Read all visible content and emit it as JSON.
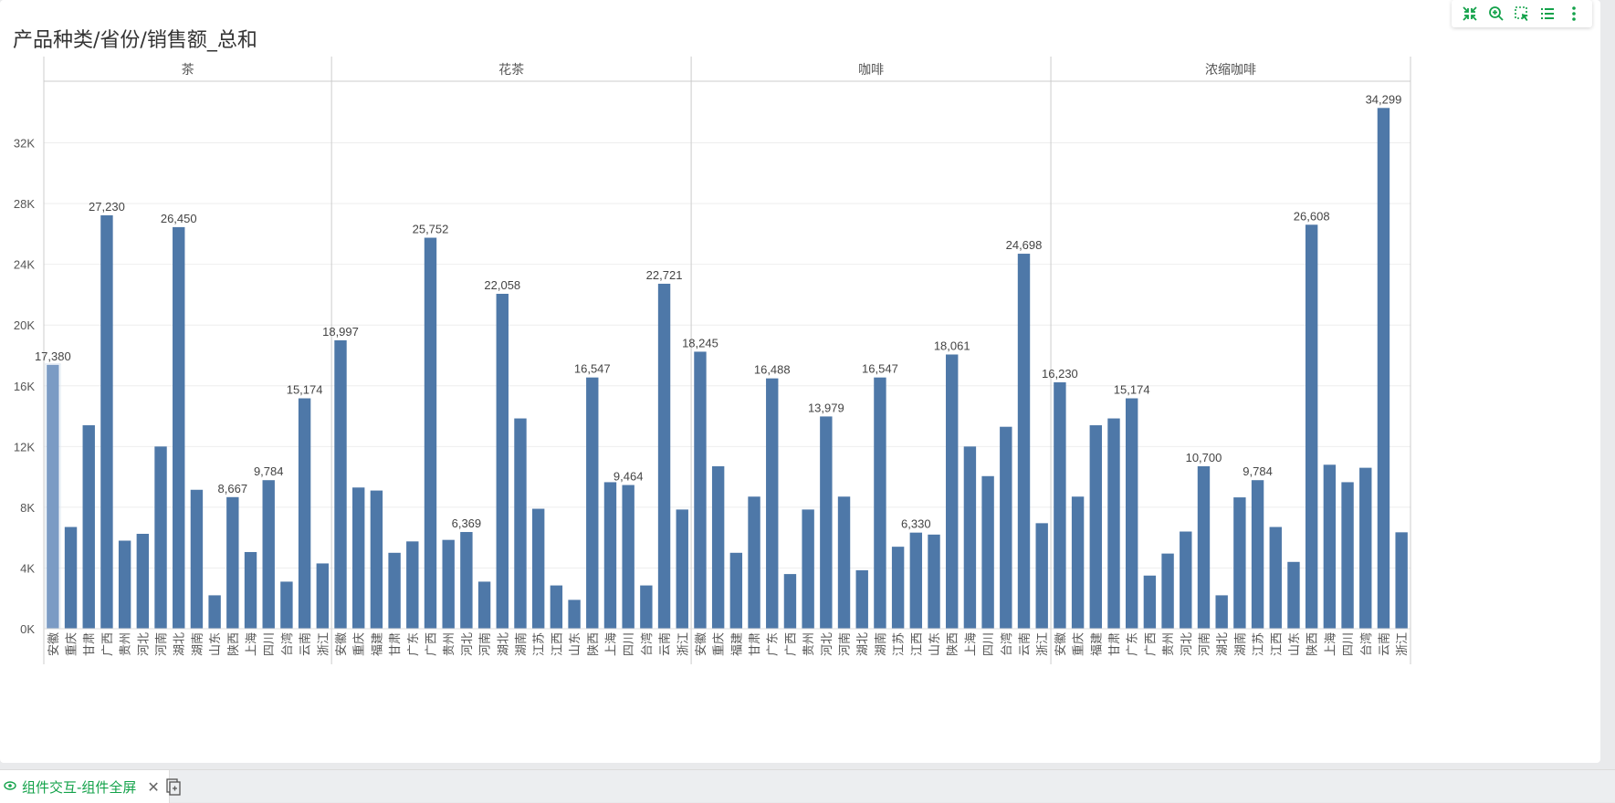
{
  "title": "产品种类/省份/销售额_总和",
  "toolbar": {
    "icons": [
      "collapse-icon",
      "zoom-in-icon",
      "select-icon",
      "list-icon",
      "more-icon"
    ]
  },
  "tab": {
    "label": "组件交互-组件全屏"
  },
  "colors": {
    "bar": "#4e78a8",
    "bar_highlight": "#7b9bc4",
    "grid": "#eeeeee",
    "text": "#555555",
    "accent": "#13a24a"
  },
  "chart_data": {
    "type": "bar",
    "ylim": [
      0,
      36000
    ],
    "yticks": [
      0,
      4000,
      8000,
      12000,
      16000,
      20000,
      24000,
      28000,
      32000
    ],
    "yticklabels": [
      "0K",
      "4K",
      "8K",
      "12K",
      "16K",
      "20K",
      "24K",
      "28K",
      "32K"
    ],
    "panels": [
      {
        "name": "茶",
        "categories": [
          "安徽",
          "重庆",
          "甘肃",
          "广西",
          "贵州",
          "河北",
          "河南",
          "湖北",
          "湖南",
          "山东",
          "陕西",
          "上海",
          "四川",
          "台湾",
          "云南",
          "浙江"
        ],
        "values": [
          17380,
          6700,
          13400,
          27230,
          5800,
          6250,
          12000,
          26450,
          9150,
          2200,
          8667,
          5050,
          9784,
          3100,
          15174,
          4300
        ],
        "labels": [
          "17,380",
          "",
          "",
          "27,230",
          "",
          "",
          "",
          "26,450",
          "",
          "",
          "8,667",
          "",
          "9,784",
          "",
          "15,174",
          ""
        ],
        "highlight_index": 0
      },
      {
        "name": "花茶",
        "categories": [
          "安徽",
          "重庆",
          "福建",
          "甘肃",
          "广东",
          "广西",
          "贵州",
          "河北",
          "河南",
          "湖北",
          "湖南",
          "江苏",
          "江西",
          "山东",
          "陕西",
          "上海",
          "四川",
          "台湾",
          "云南",
          "浙江"
        ],
        "values": [
          18997,
          9300,
          9100,
          5000,
          5750,
          25752,
          5850,
          6369,
          3100,
          22058,
          13850,
          7900,
          2850,
          1900,
          16547,
          9650,
          9464,
          2850,
          22721,
          7850
        ],
        "labels": [
          "18,997",
          "",
          "",
          "",
          "",
          "25,752",
          "",
          "6,369",
          "",
          "22,058",
          "",
          "",
          "",
          "",
          "16,547",
          "",
          "9,464",
          "",
          "22,721",
          ""
        ]
      },
      {
        "name": "咖啡",
        "categories": [
          "安徽",
          "重庆",
          "福建",
          "甘肃",
          "广东",
          "广西",
          "贵州",
          "河北",
          "河南",
          "湖北",
          "湖南",
          "江苏",
          "江西",
          "山东",
          "陕西",
          "上海",
          "四川",
          "台湾",
          "云南",
          "浙江"
        ],
        "values": [
          18245,
          10700,
          5000,
          8700,
          16488,
          3600,
          7850,
          13979,
          8700,
          3850,
          16547,
          5400,
          6330,
          6200,
          18061,
          12000,
          10050,
          13300,
          24698,
          6950
        ],
        "labels": [
          "18,245",
          "",
          "",
          "",
          "16,488",
          "",
          "",
          "13,979",
          "",
          "",
          "16,547",
          "",
          "6,330",
          "",
          "18,061",
          "",
          "",
          "",
          "24,698",
          ""
        ]
      },
      {
        "name": "浓缩咖啡",
        "categories": [
          "安徽",
          "重庆",
          "福建",
          "甘肃",
          "广东",
          "广西",
          "贵州",
          "河北",
          "河南",
          "湖北",
          "湖南",
          "江苏",
          "江西",
          "山东",
          "陕西",
          "上海",
          "四川",
          "台湾",
          "云南",
          "浙江"
        ],
        "values": [
          16230,
          8700,
          13400,
          13850,
          15174,
          3500,
          4950,
          6400,
          10700,
          2200,
          8650,
          9784,
          6700,
          4400,
          26608,
          10800,
          9650,
          10600,
          34299,
          6350
        ],
        "labels": [
          "16,230",
          "",
          "",
          "",
          "15,174",
          "",
          "",
          "",
          "10,700",
          "",
          "",
          "9,784",
          "",
          "",
          "26,608",
          "",
          "",
          "",
          "34,299",
          ""
        ]
      }
    ]
  }
}
